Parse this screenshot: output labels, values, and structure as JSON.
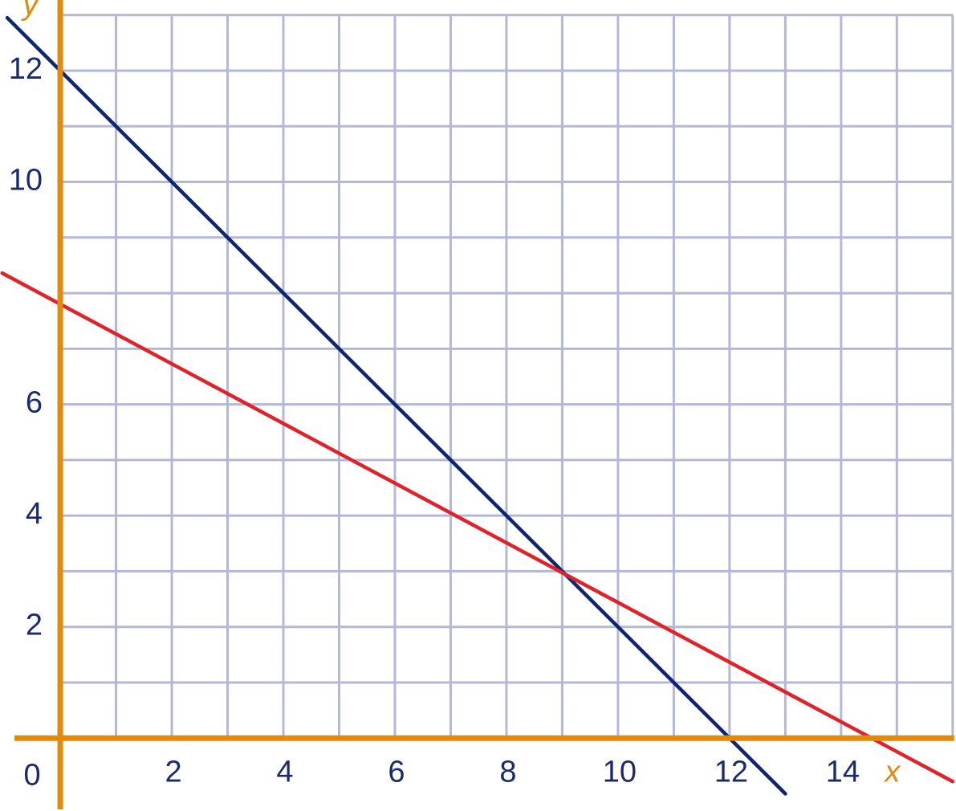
{
  "chart_data": {
    "type": "line",
    "x_label": "x",
    "y_label": "y",
    "origin_label": "0",
    "xlim": [
      -1.08,
      16.06
    ],
    "ylim": [
      -1.31,
      13.27
    ],
    "xticks": [
      2,
      4,
      6,
      8,
      10,
      12,
      14
    ],
    "yticks": [
      2,
      4,
      6,
      10,
      12
    ],
    "xgrid": [
      0,
      1,
      2,
      3,
      4,
      5,
      6,
      7,
      8,
      9,
      10,
      11,
      12,
      13,
      14,
      15,
      16
    ],
    "ygrid": [
      0,
      1,
      2,
      3,
      4,
      5,
      6,
      7,
      8,
      9,
      10,
      11,
      12,
      13
    ],
    "grid_color": "#b3b8d9",
    "axis_color": "#e08a0e",
    "series": [
      {
        "color": "#0d2572",
        "x": [
          -0.95,
          13
        ],
        "values": [
          12.95,
          -1
        ]
      },
      {
        "color": "#e0232b",
        "x": [
          -1.04,
          16
        ],
        "values": [
          8.36,
          -0.78
        ]
      }
    ]
  }
}
